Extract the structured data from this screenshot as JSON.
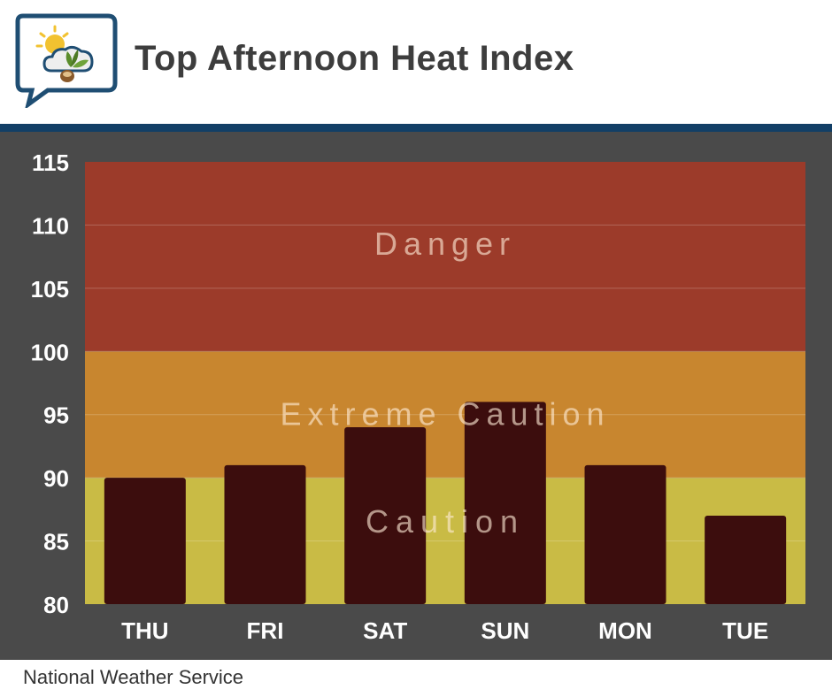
{
  "header": {
    "title": "Top Afternoon Heat Index",
    "logo_icon": "weather-sun-cloud-leaf-icon"
  },
  "footer": {
    "source": "National Weather Service"
  },
  "colors": {
    "danger": "#9c3b2a",
    "extreme_caution": "#c8862f",
    "caution": "#c9bb45",
    "bar": "#3c0d0d",
    "panel": "#4a4a4a",
    "rule": "#123f66"
  },
  "chart_data": {
    "type": "bar",
    "categories": [
      "THU",
      "FRI",
      "SAT",
      "SUN",
      "MON",
      "TUE"
    ],
    "values": [
      90,
      91,
      94,
      96,
      91,
      87
    ],
    "ylim": [
      80,
      115
    ],
    "yticks": [
      80,
      85,
      90,
      95,
      100,
      105,
      110,
      115
    ],
    "grid": true,
    "bands": [
      {
        "label": "Caution",
        "from": 80,
        "to": 90
      },
      {
        "label": "Extreme Caution",
        "from": 90,
        "to": 100
      },
      {
        "label": "Danger",
        "from": 100,
        "to": 115
      }
    ]
  }
}
